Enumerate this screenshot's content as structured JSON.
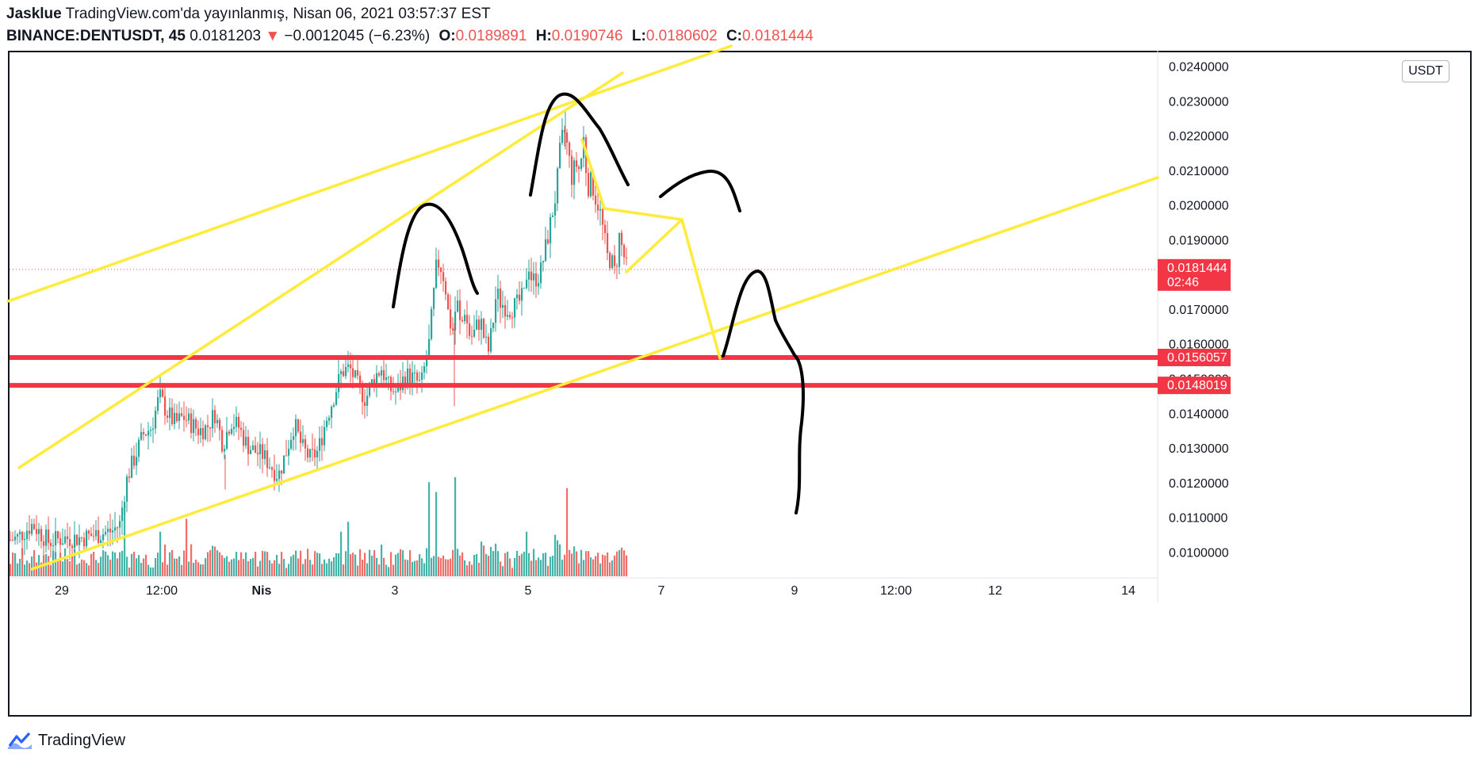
{
  "header": {
    "author": "Jasklue",
    "published": "TradingView.com'da yayınlanmış, Nisan 06, 2021 03:57:37 EST",
    "symbol": "BINANCE:DENTUSDT, 45",
    "last": "0.0181203",
    "arrow": "▼",
    "change": "−0.0012045 (−6.23%)",
    "o_label": "O:",
    "o_value": "0.0189891",
    "h_label": "H:",
    "h_value": "0.0190746",
    "l_label": "L:",
    "l_value": "0.0180602",
    "c_label": "C:",
    "c_value": "0.0181444"
  },
  "unit": "USDT",
  "footer": {
    "brand": "TradingView"
  },
  "colors": {
    "up": "#26a69a",
    "down": "#ef5350",
    "trend": "#ffeb3b",
    "level": "#f23645",
    "ink": "#000000"
  },
  "chart_data": {
    "type": "candlestick",
    "ylim": [
      0.0093,
      0.0244
    ],
    "yticks": [
      "0.0100000",
      "0.0110000",
      "0.0120000",
      "0.0130000",
      "0.0140000",
      "0.0150000",
      "0.0160000",
      "0.0170000",
      "0.0180000",
      "0.0190000",
      "0.0200000",
      "0.0210000",
      "0.0220000",
      "0.0230000",
      "0.0240000"
    ],
    "xticks": [
      "29",
      "12:00",
      "Nis",
      "3",
      "5",
      "7",
      "9",
      "12:00",
      "12",
      "14"
    ],
    "bold_xticks": [
      "Nis"
    ],
    "price_labels": [
      {
        "value": 0.0181444,
        "text": "0.0181444",
        "subtext": "02:46"
      },
      {
        "value": 0.0156057,
        "text": "0.0156057"
      },
      {
        "value": 0.0148019,
        "text": "0.0148019"
      }
    ],
    "horizontal_levels": [
      0.0156057,
      0.0148019
    ],
    "price_path": [
      [
        0,
        0.0103
      ],
      [
        20,
        0.0104
      ],
      [
        40,
        0.0108
      ],
      [
        60,
        0.0103
      ],
      [
        80,
        0.0104
      ],
      [
        100,
        0.0104
      ],
      [
        120,
        0.0105
      ],
      [
        140,
        0.0106
      ],
      [
        150,
        0.0108
      ],
      [
        155,
        0.0116
      ],
      [
        160,
        0.0122
      ],
      [
        170,
        0.0128
      ],
      [
        180,
        0.0134
      ],
      [
        190,
        0.0136
      ],
      [
        200,
        0.0145
      ],
      [
        210,
        0.014
      ],
      [
        220,
        0.0137
      ],
      [
        230,
        0.0139
      ],
      [
        240,
        0.0137
      ],
      [
        250,
        0.0135
      ],
      [
        260,
        0.0136
      ],
      [
        270,
        0.014
      ],
      [
        280,
        0.0131
      ],
      [
        290,
        0.0138
      ],
      [
        300,
        0.0136
      ],
      [
        310,
        0.0131
      ],
      [
        320,
        0.0129
      ],
      [
        330,
        0.0128
      ],
      [
        340,
        0.0125
      ],
      [
        350,
        0.0122
      ],
      [
        360,
        0.0129
      ],
      [
        370,
        0.0137
      ],
      [
        380,
        0.013
      ],
      [
        390,
        0.0127
      ],
      [
        400,
        0.0129
      ],
      [
        410,
        0.0138
      ],
      [
        420,
        0.0145
      ],
      [
        430,
        0.0152
      ],
      [
        440,
        0.0153
      ],
      [
        450,
        0.0148
      ],
      [
        460,
        0.0144
      ],
      [
        470,
        0.015
      ],
      [
        480,
        0.0153
      ],
      [
        490,
        0.0147
      ],
      [
        500,
        0.0146
      ],
      [
        510,
        0.0151
      ],
      [
        520,
        0.015
      ],
      [
        530,
        0.0148
      ],
      [
        540,
        0.016
      ],
      [
        545,
        0.0172
      ],
      [
        550,
        0.0184
      ],
      [
        555,
        0.0182
      ],
      [
        560,
        0.0178
      ],
      [
        565,
        0.0167
      ],
      [
        570,
        0.0164
      ],
      [
        575,
        0.0173
      ],
      [
        580,
        0.0164
      ],
      [
        585,
        0.017
      ],
      [
        590,
        0.0163
      ],
      [
        595,
        0.0162
      ],
      [
        600,
        0.0165
      ],
      [
        605,
        0.0167
      ],
      [
        610,
        0.0161
      ],
      [
        615,
        0.0158
      ],
      [
        620,
        0.0165
      ],
      [
        625,
        0.0175
      ],
      [
        630,
        0.0172
      ],
      [
        640,
        0.017
      ],
      [
        650,
        0.0171
      ],
      [
        660,
        0.0174
      ],
      [
        665,
        0.0184
      ],
      [
        670,
        0.0178
      ],
      [
        680,
        0.018
      ],
      [
        690,
        0.0191
      ],
      [
        700,
        0.0203
      ],
      [
        705,
        0.0215
      ],
      [
        710,
        0.0222
      ],
      [
        715,
        0.0216
      ],
      [
        720,
        0.0208
      ],
      [
        725,
        0.0212
      ],
      [
        730,
        0.021
      ],
      [
        735,
        0.0219
      ],
      [
        740,
        0.0205
      ],
      [
        745,
        0.0207
      ],
      [
        750,
        0.0202
      ],
      [
        755,
        0.0199
      ],
      [
        760,
        0.0192
      ],
      [
        765,
        0.0185
      ],
      [
        770,
        0.0184
      ],
      [
        775,
        0.018
      ],
      [
        780,
        0.0191
      ],
      [
        785,
        0.0186
      ],
      [
        790,
        0.0181
      ]
    ],
    "volume_spikes": [
      [
        540,
        0.95
      ],
      [
        550,
        0.85
      ],
      [
        573,
        1.0
      ],
      [
        430,
        0.45
      ],
      [
        437,
        0.55
      ],
      [
        157,
        0.72
      ],
      [
        713,
        0.89
      ],
      [
        663,
        0.45
      ],
      [
        235,
        0.58
      ],
      [
        40,
        0.2
      ],
      [
        200,
        0.45
      ],
      [
        270,
        0.3
      ],
      [
        480,
        0.32
      ],
      [
        605,
        0.35
      ],
      [
        700,
        0.42
      ]
    ]
  },
  "drawings": {
    "trend_lines": [
      [
        [
          10,
          380
        ],
        [
          922,
          58
        ]
      ],
      [
        [
          24,
          590
        ],
        [
          785,
          92
        ]
      ],
      [
        [
          40,
          718
        ],
        [
          1460,
          224
        ]
      ],
      [
        [
          734,
          176
        ],
        [
          762,
          263
        ]
      ],
      [
        [
          762,
          263
        ],
        [
          860,
          277
        ]
      ],
      [
        [
          860,
          277
        ],
        [
          790,
          343
        ]
      ],
      [
        [
          860,
          277
        ],
        [
          908,
          452
        ]
      ]
    ],
    "freehand": [
      "M496,387 C505,330 515,262 538,258 C556,254 571,282 582,312 C590,334 595,360 602,370",
      "M669,246 C680,185 686,130 706,120 C724,112 738,140 756,162 C770,185 778,207 792,233",
      "M833,248 C852,232 873,218 895,216 C919,215 925,242 933,266",
      "M912,449 C925,412 933,345 955,342 C968,342 972,380 978,404 C985,420 993,432 1002,448 C1011,456 1016,486 1011,533 C1005,575 1012,610 1004,647"
    ]
  }
}
